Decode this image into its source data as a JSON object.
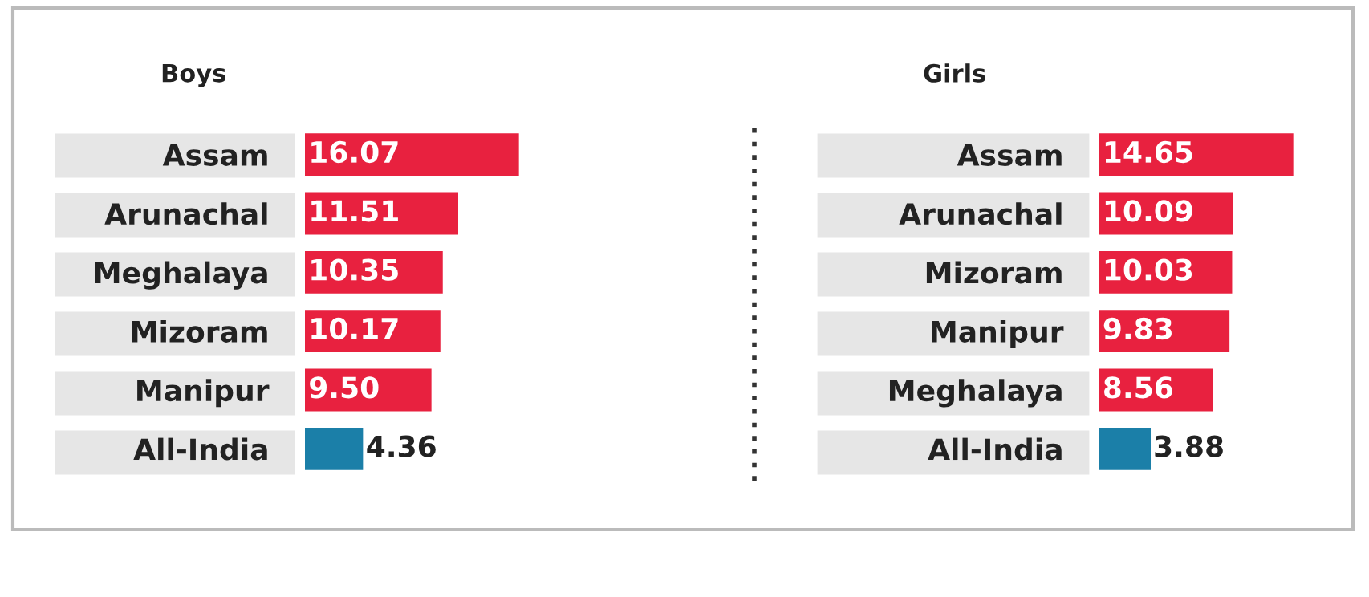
{
  "chart_data": [
    {
      "type": "bar",
      "orientation": "horizontal",
      "title": "Boys",
      "categories": [
        "Assam",
        "Arunachal",
        "Meghalaya",
        "Mizoram",
        "Manipur",
        "All-India"
      ],
      "values": [
        16.07,
        11.51,
        10.35,
        10.17,
        9.5,
        4.36
      ],
      "value_labels": [
        "16.07",
        "11.51",
        "10.35",
        "10.17",
        "9.50",
        "4.36"
      ],
      "colors": [
        "#e8213f",
        "#e8213f",
        "#e8213f",
        "#e8213f",
        "#e8213f",
        "#1b7fa8"
      ]
    },
    {
      "type": "bar",
      "orientation": "horizontal",
      "title": "Girls",
      "categories": [
        "Assam",
        "Arunachal",
        "Mizoram",
        "Manipur",
        "Meghalaya",
        "All-India"
      ],
      "values": [
        14.65,
        10.09,
        10.03,
        9.83,
        8.56,
        3.88
      ],
      "value_labels": [
        "14.65",
        "10.09",
        "10.03",
        "9.83",
        "8.56",
        "3.88"
      ],
      "colors": [
        "#e8213f",
        "#e8213f",
        "#e8213f",
        "#e8213f",
        "#e8213f",
        "#1b7fa8"
      ]
    }
  ]
}
